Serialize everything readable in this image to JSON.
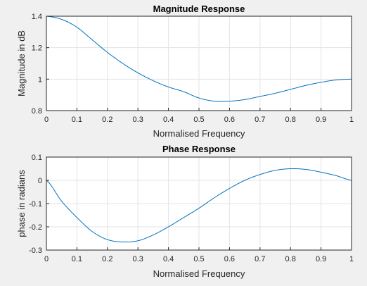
{
  "window": {
    "background": "#f0f0f0"
  },
  "chart_data": [
    {
      "type": "line",
      "title": "Magnitude Response",
      "xlabel": "Normalised Frequency",
      "ylabel": "Magnitude in dB",
      "xlim": [
        0,
        1
      ],
      "ylim": [
        0.8,
        1.4
      ],
      "xticks": [
        "0",
        "0.1",
        "0.2",
        "0.3",
        "0.4",
        "0.5",
        "0.6",
        "0.7",
        "0.8",
        "0.9",
        "1"
      ],
      "yticks": [
        "0.8",
        "1",
        "1.2",
        "1.4"
      ],
      "grid": true,
      "color": "#0072bd",
      "series": [
        {
          "x": [
            0,
            0.05,
            0.1,
            0.15,
            0.2,
            0.25,
            0.3,
            0.35,
            0.4,
            0.45,
            0.5,
            0.55,
            0.6,
            0.65,
            0.7,
            0.75,
            0.8,
            0.85,
            0.9,
            0.95,
            1.0
          ],
          "values": [
            1.4,
            1.38,
            1.33,
            1.25,
            1.17,
            1.1,
            1.04,
            0.99,
            0.95,
            0.92,
            0.88,
            0.86,
            0.86,
            0.87,
            0.89,
            0.91,
            0.935,
            0.96,
            0.98,
            0.995,
            1.0
          ]
        }
      ]
    },
    {
      "type": "line",
      "title": "Phase Response",
      "xlabel": "Normalised Frequency",
      "ylabel": "phase in radians",
      "xlim": [
        0,
        1
      ],
      "ylim": [
        -0.3,
        0.1
      ],
      "xticks": [
        "0",
        "0.1",
        "0.2",
        "0.3",
        "0.4",
        "0.5",
        "0.6",
        "0.7",
        "0.8",
        "0.9",
        "1"
      ],
      "yticks": [
        "-0.3",
        "-0.2",
        "-0.1",
        "0",
        "0.1"
      ],
      "grid": true,
      "color": "#0072bd",
      "series": [
        {
          "x": [
            0,
            0.05,
            0.1,
            0.15,
            0.2,
            0.25,
            0.3,
            0.35,
            0.4,
            0.45,
            0.5,
            0.55,
            0.6,
            0.65,
            0.7,
            0.75,
            0.8,
            0.85,
            0.9,
            0.95,
            1.0
          ],
          "values": [
            0.0,
            -0.09,
            -0.16,
            -0.22,
            -0.255,
            -0.265,
            -0.26,
            -0.235,
            -0.2,
            -0.16,
            -0.12,
            -0.075,
            -0.035,
            0.0,
            0.025,
            0.043,
            0.05,
            0.047,
            0.035,
            0.02,
            0.0
          ]
        }
      ]
    }
  ]
}
